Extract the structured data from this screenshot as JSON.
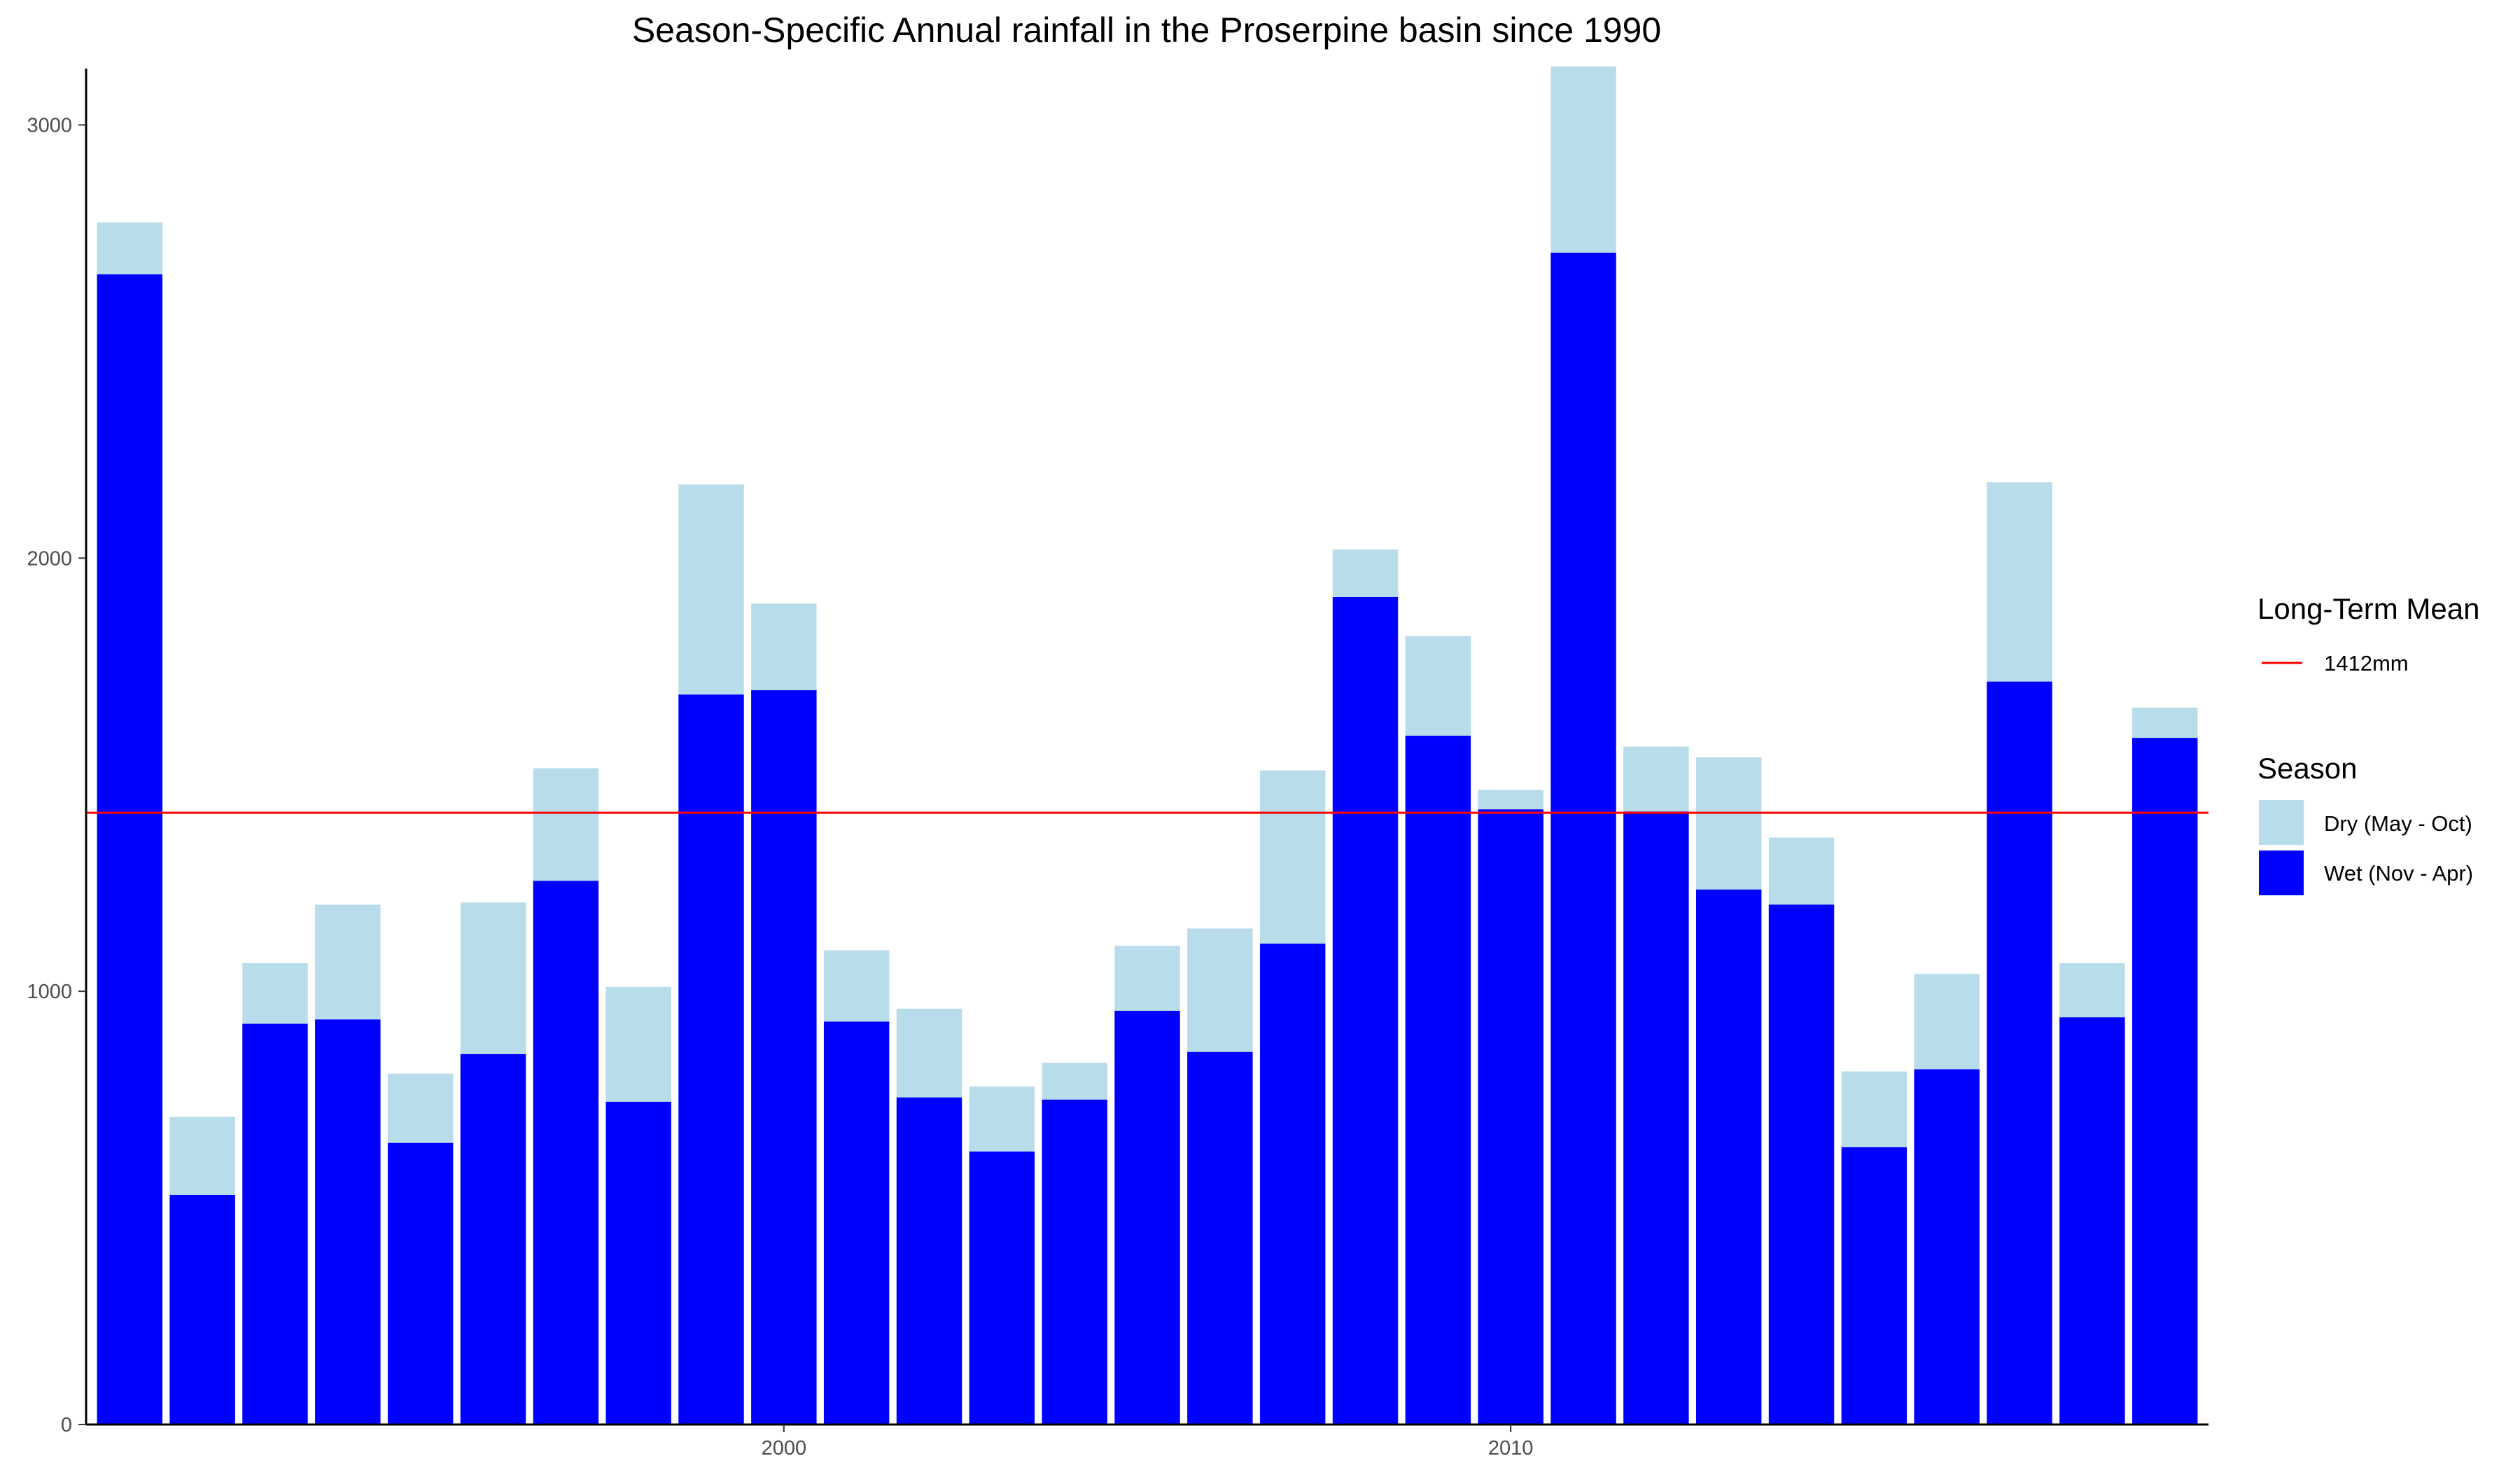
{
  "chart_data": {
    "type": "bar",
    "stacked": true,
    "title": "Season-Specific Annual rainfall in the Proserpine basin since 1990",
    "xlabel": "",
    "ylabel": "",
    "x": [
      1991,
      1992,
      1993,
      1994,
      1995,
      1996,
      1997,
      1998,
      1999,
      2000,
      2001,
      2002,
      2003,
      2004,
      2005,
      2006,
      2007,
      2008,
      2009,
      2010,
      2011,
      2012,
      2013,
      2014,
      2015,
      2016,
      2017,
      2018,
      2019
    ],
    "xticks": [
      2000,
      2010
    ],
    "xtick_labels": [
      "2000",
      "2010"
    ],
    "yticks": [
      0,
      1000,
      2000,
      3000
    ],
    "ytick_labels": [
      "0",
      "1000",
      "2000",
      "3000"
    ],
    "ylim": [
      0,
      3130
    ],
    "xlim": [
      1990.4,
      2019.6
    ],
    "series": [
      {
        "name": "Wet (Nov - Apr)",
        "color": "#0000ff",
        "values": [
          2655,
          530,
          925,
          935,
          650,
          855,
          1255,
          745,
          1685,
          1695,
          930,
          755,
          630,
          750,
          955,
          860,
          1110,
          1910,
          1590,
          1420,
          2705,
          1415,
          1235,
          1200,
          640,
          820,
          1715,
          940,
          1585
        ]
      },
      {
        "name": "Dry (May - Oct)",
        "color": "#b8dce9",
        "values": [
          120,
          180,
          140,
          265,
          160,
          350,
          260,
          265,
          485,
          200,
          165,
          205,
          150,
          85,
          150,
          285,
          400,
          110,
          230,
          45,
          430,
          150,
          305,
          155,
          175,
          220,
          460,
          125,
          70
        ]
      }
    ],
    "mean_line": {
      "value": 1412,
      "color": "#ff0000",
      "label": "1412mm"
    },
    "legend": {
      "placement": "right",
      "mean_title": "Long-Term Mean",
      "season_title": "Season",
      "season_items": [
        {
          "label": "Dry (May - Oct)",
          "color": "#b8dce9"
        },
        {
          "label": "Wet (Nov - Apr)",
          "color": "#0000ff"
        }
      ]
    },
    "grid": false
  }
}
